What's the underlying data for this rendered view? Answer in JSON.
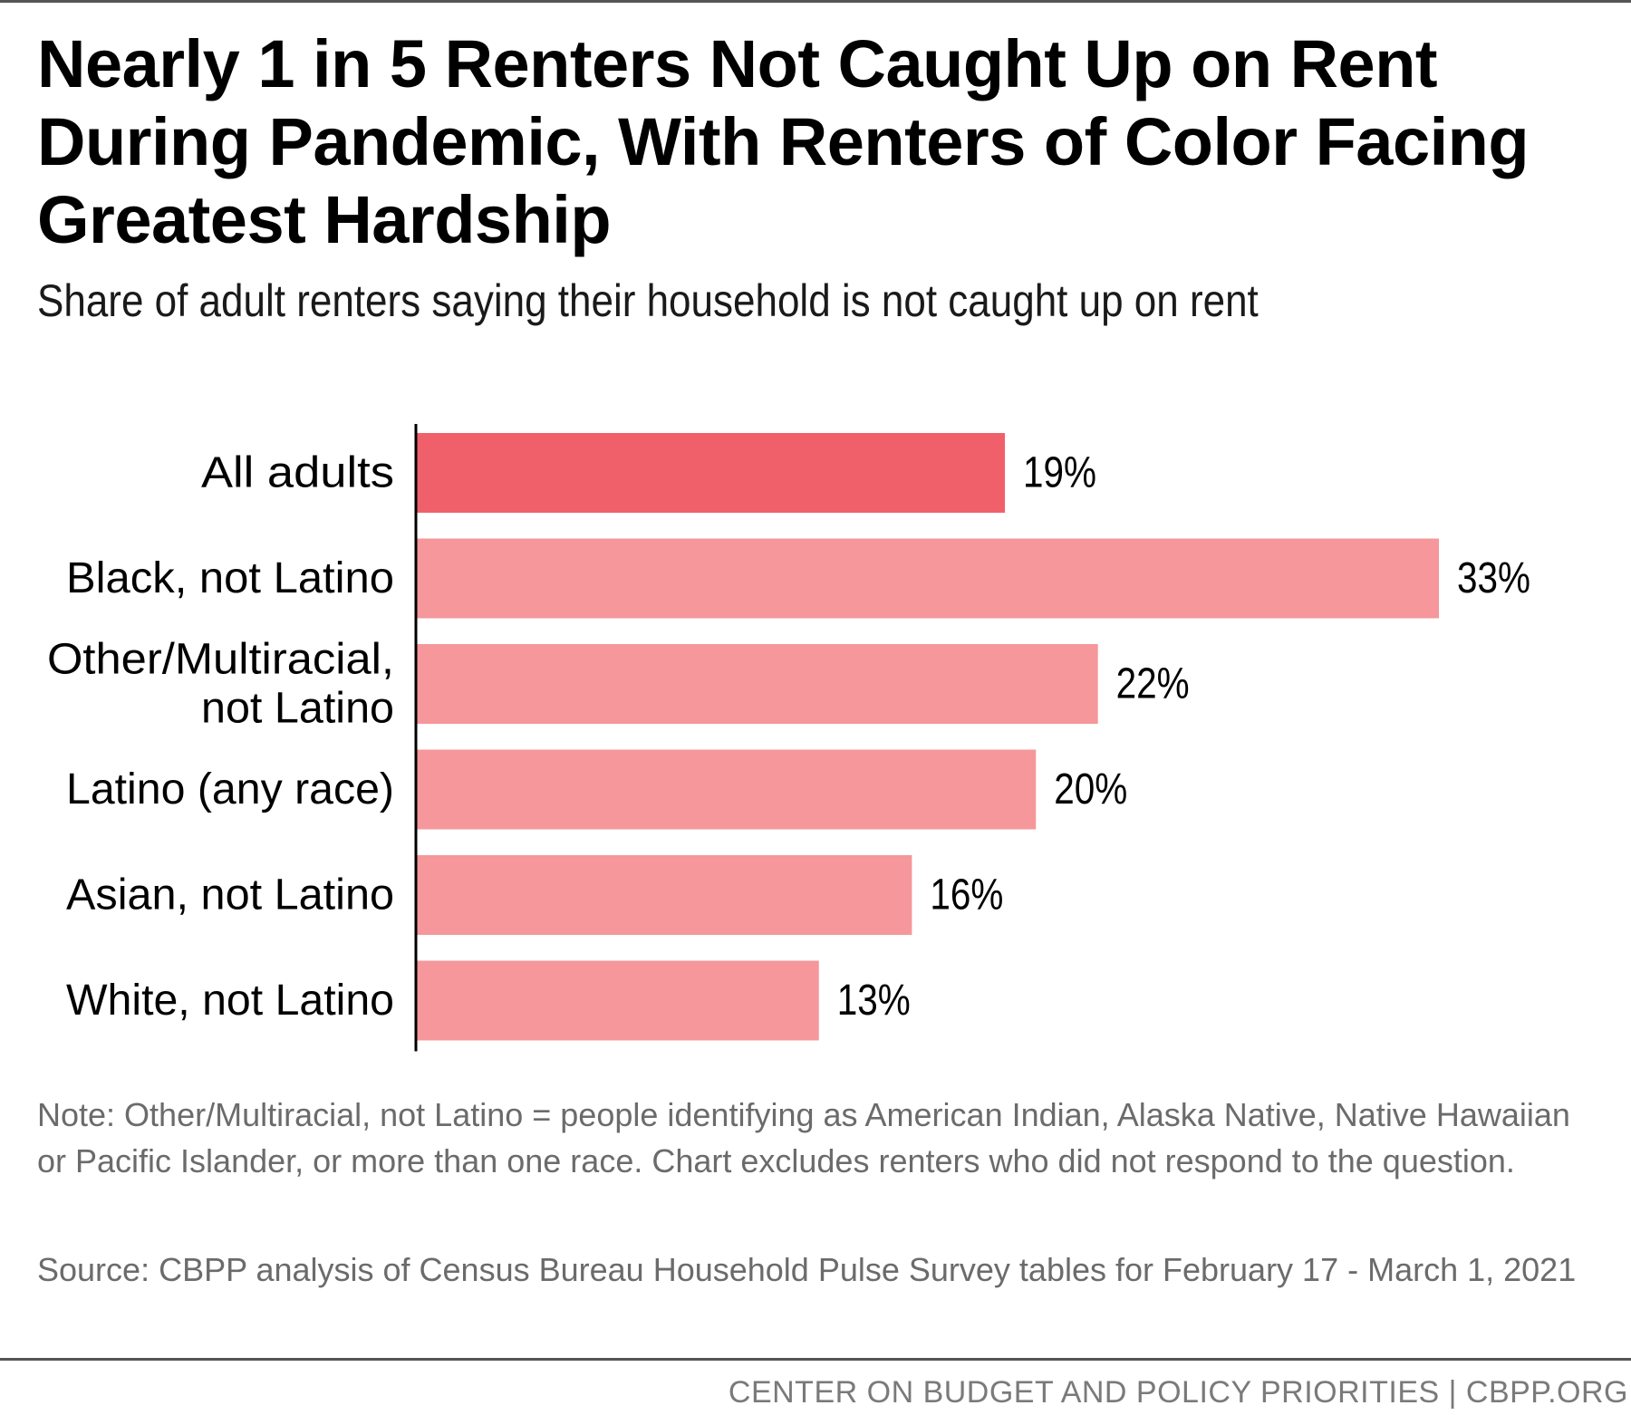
{
  "title": "Nearly 1 in 5 Renters Not Caught Up on Rent During Pandemic, With Renters of Color Facing Greatest Hardship",
  "subtitle": "Share of adult renters saying their household is not caught up on rent",
  "note": "Note: Other/Multiracial, not Latino = people identifying as American Indian, Alaska Native, Native Hawaiian or Pacific Islander, or more than one race. Chart excludes renters who did not respond to the question.",
  "source": "Source: CBPP analysis of Census Bureau Household Pulse Survey tables for February 17 - March 1, 2021",
  "footer": "CENTER ON BUDGET AND POLICY PRIORITIES | CBPP.ORG",
  "colors": {
    "highlight": "#f0606a",
    "bar": "#f5979b",
    "text": "#000000",
    "note_text": "#6b6b6b",
    "rule": "#555555"
  },
  "chart_data": {
    "type": "bar",
    "orientation": "horizontal",
    "categories": [
      [
        "All adults"
      ],
      [
        "Black, not Latino"
      ],
      [
        "Other/Multiracial,",
        "not Latino"
      ],
      [
        "Latino (any race)"
      ],
      [
        "Asian, not Latino"
      ],
      [
        "White, not Latino"
      ]
    ],
    "values": [
      19,
      33,
      22,
      20,
      16,
      13
    ],
    "value_labels": [
      "19%",
      "33%",
      "22%",
      "20%",
      "16%",
      "13%"
    ],
    "highlight_index": 0,
    "xlim": [
      0,
      33
    ],
    "grid": false,
    "legend": "none"
  }
}
